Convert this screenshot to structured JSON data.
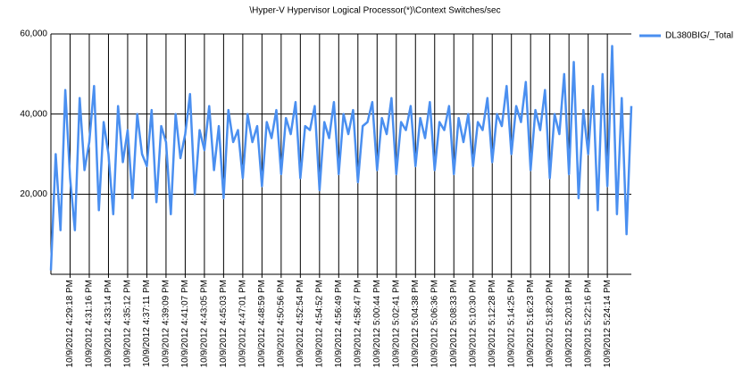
{
  "chart_data": {
    "type": "line",
    "title": "\\Hyper-V Hypervisor Logical Processor(*)\\Context Switches/sec",
    "categories": [
      null,
      null,
      null,
      null,
      "10/9/2012 4:29:18 PM",
      null,
      null,
      null,
      "10/9/2012 4:31:16 PM",
      null,
      null,
      null,
      "10/9/2012 4:33:14 PM",
      null,
      null,
      null,
      "10/9/2012 4:35:12 PM",
      null,
      null,
      null,
      "10/9/2012 4:37:11 PM",
      null,
      null,
      null,
      "10/9/2012 4:39:09 PM",
      null,
      null,
      null,
      "10/9/2012 4:41:07 PM",
      null,
      null,
      null,
      "10/9/2012 4:43:05 PM",
      null,
      null,
      null,
      "10/9/2012 4:45:03 PM",
      null,
      null,
      null,
      "10/9/2012 4:47:01 PM",
      null,
      null,
      null,
      "10/9/2012 4:48:59 PM",
      null,
      null,
      null,
      "10/9/2012 4:50:56 PM",
      null,
      null,
      null,
      "10/9/2012 4:52:54 PM",
      null,
      null,
      null,
      "10/9/2012 4:54:52 PM",
      null,
      null,
      null,
      "10/9/2012 4:56:49 PM",
      null,
      null,
      null,
      "10/9/2012 4:58:47 PM",
      null,
      null,
      null,
      "10/9/2012 5:00:44 PM",
      null,
      null,
      null,
      "10/9/2012 5:02:41 PM",
      null,
      null,
      null,
      "10/9/2012 5:04:38 PM",
      null,
      null,
      null,
      "10/9/2012 5:06:36 PM",
      null,
      null,
      null,
      "10/9/2012 5:08:33 PM",
      null,
      null,
      null,
      "10/9/2012 5:10:30 PM",
      null,
      null,
      null,
      "10/9/2012 5:12:28 PM",
      null,
      null,
      null,
      "10/9/2012 5:14:25 PM",
      null,
      null,
      null,
      "10/9/2012 5:16:23 PM",
      null,
      null,
      null,
      "10/9/2012 5:18:20 PM",
      null,
      null,
      null,
      "10/9/2012 5:20:18 PM",
      null,
      null,
      null,
      "10/9/2012 5:22:16 PM",
      null,
      null,
      null,
      "10/9/2012 5:24:14 PM",
      null,
      null,
      null,
      null,
      null
    ],
    "series": [
      {
        "name": "DL380BIG/_Total",
        "color": "#4a8ff0",
        "values": [
          1000,
          30000,
          11000,
          46000,
          24000,
          11000,
          44000,
          26000,
          33000,
          47000,
          16000,
          38000,
          30000,
          15000,
          42000,
          28000,
          36000,
          19000,
          40000,
          30000,
          27000,
          41000,
          18000,
          37000,
          33000,
          15000,
          40000,
          29000,
          35000,
          45000,
          20000,
          36000,
          31000,
          42000,
          26000,
          37000,
          19000,
          41000,
          33000,
          36000,
          24000,
          40000,
          33000,
          37000,
          22000,
          38000,
          34000,
          41000,
          25000,
          39000,
          35000,
          43000,
          24000,
          37000,
          36000,
          42000,
          21000,
          38000,
          34000,
          43000,
          25000,
          40000,
          35000,
          41000,
          23000,
          37000,
          38000,
          43000,
          26000,
          39000,
          35000,
          44000,
          25000,
          38000,
          36000,
          42000,
          27000,
          39000,
          34000,
          43000,
          26000,
          38000,
          36000,
          42000,
          25000,
          39000,
          33000,
          40000,
          27000,
          38000,
          36000,
          44000,
          28000,
          40000,
          37000,
          47000,
          30000,
          42000,
          38000,
          48000,
          26000,
          41000,
          36000,
          46000,
          24000,
          40000,
          35000,
          50000,
          25000,
          53000,
          19000,
          41000,
          30000,
          47000,
          16000,
          50000,
          22000,
          57000,
          15000,
          44000,
          10000,
          42000
        ]
      }
    ],
    "ylim": [
      0,
      60000
    ],
    "yticks": [
      {
        "value": 20000,
        "label": "20,000"
      },
      {
        "value": 40000,
        "label": "40,000"
      },
      {
        "value": 60000,
        "label": "60,000"
      }
    ],
    "grid": true
  }
}
